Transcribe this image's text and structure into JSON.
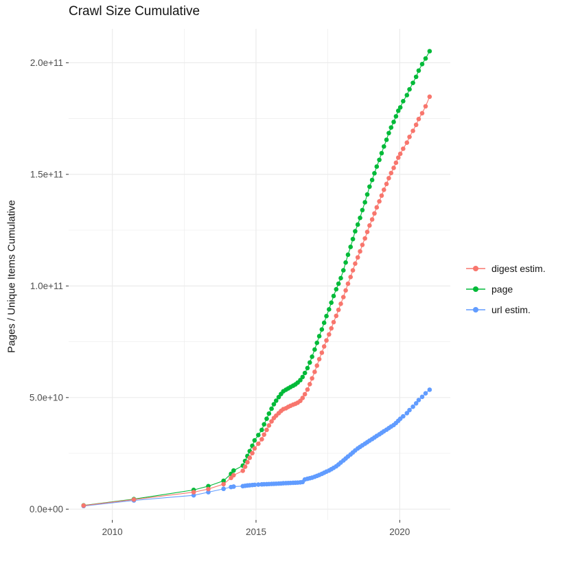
{
  "chart_data": {
    "type": "scatter",
    "title": "Crawl Size Cumulative",
    "xlabel": "",
    "ylabel": "Pages / Unique Items Cumulative",
    "y_unit": "pages (values stored in billions, 1e9)",
    "x_unit": "year (decimal)",
    "grid": true,
    "legend_position": "right",
    "xlim": [
      2008.48,
      2021.76
    ],
    "ylim_billions": [
      -4.83,
      215.2
    ],
    "x_major_ticks": [
      2010,
      2015,
      2020
    ],
    "x_tick_labels": [
      "2010",
      "2015",
      "2020"
    ],
    "x_minor_gridlines": [
      2012.5,
      2017.5
    ],
    "y_major_ticks_billions": [
      0,
      50,
      100,
      150,
      200
    ],
    "y_tick_labels": [
      "0.0e+00",
      "5.0e+10",
      "1.0e+11",
      "1.5e+11",
      "2.0e+11"
    ],
    "y_minor_gridlines_billions": [
      25,
      75,
      125,
      175
    ],
    "series": [
      {
        "name": "digest estim.",
        "color": "#F8766D",
        "points": [
          [
            2009.0,
            1.6
          ],
          [
            2010.75,
            4.3
          ],
          [
            2012.83,
            7.6
          ],
          [
            2013.34,
            9.0
          ],
          [
            2013.87,
            11.2
          ],
          [
            2014.13,
            14.0
          ],
          [
            2014.22,
            15.2
          ],
          [
            2014.54,
            17.2
          ],
          [
            2014.62,
            19.0
          ],
          [
            2014.7,
            21.0
          ],
          [
            2014.78,
            23.0
          ],
          [
            2014.87,
            25.1
          ],
          [
            2014.95,
            27.2
          ],
          [
            2015.08,
            29.3
          ],
          [
            2015.2,
            31.3
          ],
          [
            2015.28,
            33.4
          ],
          [
            2015.37,
            35.5
          ],
          [
            2015.45,
            37.5
          ],
          [
            2015.54,
            39.3
          ],
          [
            2015.62,
            40.8
          ],
          [
            2015.7,
            41.9
          ],
          [
            2015.79,
            43.0
          ],
          [
            2015.87,
            44.0
          ],
          [
            2015.95,
            44.8
          ],
          [
            2016.04,
            45.2
          ],
          [
            2016.12,
            45.8
          ],
          [
            2016.2,
            46.3
          ],
          [
            2016.29,
            46.8
          ],
          [
            2016.37,
            47.2
          ],
          [
            2016.45,
            47.7
          ],
          [
            2016.54,
            48.5
          ],
          [
            2016.62,
            49.8
          ],
          [
            2016.7,
            51.5
          ],
          [
            2016.79,
            53.6
          ],
          [
            2016.87,
            56.0
          ],
          [
            2016.95,
            58.6
          ],
          [
            2017.04,
            61.5
          ],
          [
            2017.12,
            64.3
          ],
          [
            2017.2,
            67.2
          ],
          [
            2017.29,
            70.1
          ],
          [
            2017.37,
            72.9
          ],
          [
            2017.45,
            75.6
          ],
          [
            2017.54,
            78.3
          ],
          [
            2017.62,
            81.0
          ],
          [
            2017.7,
            83.8
          ],
          [
            2017.79,
            86.6
          ],
          [
            2017.87,
            89.3
          ],
          [
            2017.95,
            92.0
          ],
          [
            2018.04,
            95.0
          ],
          [
            2018.12,
            98.0
          ],
          [
            2018.2,
            101.0
          ],
          [
            2018.29,
            104.0
          ],
          [
            2018.37,
            107.0
          ],
          [
            2018.45,
            110.0
          ],
          [
            2018.54,
            112.8
          ],
          [
            2018.62,
            115.5
          ],
          [
            2018.7,
            118.4
          ],
          [
            2018.79,
            121.3
          ],
          [
            2018.87,
            124.2
          ],
          [
            2018.95,
            127.1
          ],
          [
            2019.04,
            129.8
          ],
          [
            2019.12,
            132.5
          ],
          [
            2019.2,
            135.2
          ],
          [
            2019.29,
            137.9
          ],
          [
            2019.37,
            140.5
          ],
          [
            2019.45,
            143.1
          ],
          [
            2019.54,
            145.7
          ],
          [
            2019.62,
            148.3
          ],
          [
            2019.7,
            150.6
          ],
          [
            2019.79,
            152.9
          ],
          [
            2019.87,
            155.2
          ],
          [
            2019.95,
            157.5
          ],
          [
            2020.02,
            159.2
          ],
          [
            2020.12,
            161.5
          ],
          [
            2020.25,
            164.2
          ],
          [
            2020.34,
            166.8
          ],
          [
            2020.46,
            169.5
          ],
          [
            2020.57,
            172.2
          ],
          [
            2020.66,
            174.8
          ],
          [
            2020.78,
            177.4
          ],
          [
            2020.9,
            180.5
          ],
          [
            2021.04,
            184.8
          ]
        ]
      },
      {
        "name": "page",
        "color": "#00BA38",
        "points": [
          [
            2009.0,
            1.7
          ],
          [
            2010.75,
            4.5
          ],
          [
            2012.83,
            8.6
          ],
          [
            2013.34,
            10.3
          ],
          [
            2013.87,
            12.7
          ],
          [
            2014.13,
            15.8
          ],
          [
            2014.22,
            17.3
          ],
          [
            2014.54,
            19.5
          ],
          [
            2014.62,
            21.6
          ],
          [
            2014.7,
            23.8
          ],
          [
            2014.78,
            26.0
          ],
          [
            2014.87,
            28.4
          ],
          [
            2014.95,
            30.8
          ],
          [
            2015.08,
            33.2
          ],
          [
            2015.2,
            35.5
          ],
          [
            2015.28,
            38.0
          ],
          [
            2015.37,
            40.5
          ],
          [
            2015.45,
            42.8
          ],
          [
            2015.54,
            45.0
          ],
          [
            2015.62,
            47.0
          ],
          [
            2015.7,
            48.6
          ],
          [
            2015.79,
            50.2
          ],
          [
            2015.87,
            51.6
          ],
          [
            2015.95,
            52.8
          ],
          [
            2016.04,
            53.5
          ],
          [
            2016.12,
            54.1
          ],
          [
            2016.2,
            54.7
          ],
          [
            2016.29,
            55.3
          ],
          [
            2016.37,
            55.9
          ],
          [
            2016.45,
            56.7
          ],
          [
            2016.54,
            57.8
          ],
          [
            2016.62,
            59.2
          ],
          [
            2016.7,
            61.0
          ],
          [
            2016.79,
            63.2
          ],
          [
            2016.87,
            65.7
          ],
          [
            2016.95,
            68.3
          ],
          [
            2017.04,
            71.5
          ],
          [
            2017.12,
            74.5
          ],
          [
            2017.2,
            77.5
          ],
          [
            2017.29,
            80.5
          ],
          [
            2017.37,
            83.5
          ],
          [
            2017.45,
            86.5
          ],
          [
            2017.54,
            89.5
          ],
          [
            2017.62,
            92.5
          ],
          [
            2017.7,
            95.5
          ],
          [
            2017.79,
            98.5
          ],
          [
            2017.87,
            101.0
          ],
          [
            2017.95,
            103.5
          ],
          [
            2018.04,
            107.0
          ],
          [
            2018.12,
            110.5
          ],
          [
            2018.2,
            114.0
          ],
          [
            2018.29,
            117.5
          ],
          [
            2018.37,
            121.0
          ],
          [
            2018.45,
            124.5
          ],
          [
            2018.54,
            127.5
          ],
          [
            2018.62,
            130.5
          ],
          [
            2018.7,
            134.0
          ],
          [
            2018.79,
            137.5
          ],
          [
            2018.87,
            141.0
          ],
          [
            2018.95,
            144.5
          ],
          [
            2019.04,
            147.5
          ],
          [
            2019.12,
            150.5
          ],
          [
            2019.2,
            153.5
          ],
          [
            2019.29,
            156.5
          ],
          [
            2019.37,
            159.5
          ],
          [
            2019.45,
            162.5
          ],
          [
            2019.54,
            165.5
          ],
          [
            2019.62,
            168.5
          ],
          [
            2019.7,
            171.0
          ],
          [
            2019.79,
            173.5
          ],
          [
            2019.87,
            176.0
          ],
          [
            2019.95,
            178.5
          ],
          [
            2020.02,
            180.0
          ],
          [
            2020.12,
            182.8
          ],
          [
            2020.25,
            185.5
          ],
          [
            2020.34,
            188.1
          ],
          [
            2020.46,
            191.0
          ],
          [
            2020.57,
            193.7
          ],
          [
            2020.66,
            196.5
          ],
          [
            2020.78,
            199.4
          ],
          [
            2020.9,
            201.9
          ],
          [
            2021.04,
            205.2
          ]
        ]
      },
      {
        "name": "url estim.",
        "color": "#619CFF",
        "points": [
          [
            2009.0,
            1.4
          ],
          [
            2010.75,
            3.9
          ],
          [
            2012.83,
            6.2
          ],
          [
            2013.34,
            7.6
          ],
          [
            2013.87,
            9.1
          ],
          [
            2014.13,
            9.9
          ],
          [
            2014.22,
            10.1
          ],
          [
            2014.54,
            10.3
          ],
          [
            2014.62,
            10.45
          ],
          [
            2014.7,
            10.6
          ],
          [
            2014.78,
            10.7
          ],
          [
            2014.87,
            10.8
          ],
          [
            2014.95,
            10.9
          ],
          [
            2015.08,
            11.0
          ],
          [
            2015.2,
            11.1
          ],
          [
            2015.28,
            11.15
          ],
          [
            2015.37,
            11.2
          ],
          [
            2015.45,
            11.25
          ],
          [
            2015.54,
            11.3
          ],
          [
            2015.62,
            11.35
          ],
          [
            2015.7,
            11.4
          ],
          [
            2015.79,
            11.45
          ],
          [
            2015.87,
            11.5
          ],
          [
            2015.95,
            11.6
          ],
          [
            2016.04,
            11.65
          ],
          [
            2016.12,
            11.7
          ],
          [
            2016.2,
            11.75
          ],
          [
            2016.29,
            11.8
          ],
          [
            2016.37,
            11.85
          ],
          [
            2016.45,
            11.9
          ],
          [
            2016.54,
            12.0
          ],
          [
            2016.62,
            12.15
          ],
          [
            2016.7,
            13.3
          ],
          [
            2016.79,
            13.6
          ],
          [
            2016.87,
            13.85
          ],
          [
            2016.95,
            14.1
          ],
          [
            2017.04,
            14.5
          ],
          [
            2017.12,
            14.9
          ],
          [
            2017.2,
            15.3
          ],
          [
            2017.29,
            15.8
          ],
          [
            2017.37,
            16.3
          ],
          [
            2017.45,
            16.8
          ],
          [
            2017.54,
            17.3
          ],
          [
            2017.62,
            17.9
          ],
          [
            2017.7,
            18.5
          ],
          [
            2017.79,
            19.2
          ],
          [
            2017.87,
            20.0
          ],
          [
            2017.95,
            20.9
          ],
          [
            2018.04,
            21.8
          ],
          [
            2018.12,
            22.7
          ],
          [
            2018.2,
            23.6
          ],
          [
            2018.29,
            24.5
          ],
          [
            2018.37,
            25.4
          ],
          [
            2018.45,
            26.3
          ],
          [
            2018.54,
            27.2
          ],
          [
            2018.62,
            27.9
          ],
          [
            2018.7,
            28.6
          ],
          [
            2018.79,
            29.3
          ],
          [
            2018.87,
            30.0
          ],
          [
            2018.95,
            30.7
          ],
          [
            2019.04,
            31.4
          ],
          [
            2019.12,
            32.1
          ],
          [
            2019.2,
            32.8
          ],
          [
            2019.29,
            33.5
          ],
          [
            2019.37,
            34.2
          ],
          [
            2019.45,
            34.9
          ],
          [
            2019.54,
            35.6
          ],
          [
            2019.62,
            36.3
          ],
          [
            2019.7,
            37.0
          ],
          [
            2019.79,
            37.7
          ],
          [
            2019.87,
            38.6
          ],
          [
            2019.95,
            39.6
          ],
          [
            2020.02,
            40.5
          ],
          [
            2020.12,
            41.6
          ],
          [
            2020.25,
            43.0
          ],
          [
            2020.34,
            44.4
          ],
          [
            2020.46,
            45.9
          ],
          [
            2020.57,
            47.4
          ],
          [
            2020.66,
            48.9
          ],
          [
            2020.78,
            50.3
          ],
          [
            2020.9,
            51.9
          ],
          [
            2021.04,
            53.5
          ]
        ]
      }
    ]
  },
  "colors": {
    "background": "#FFFFFF",
    "gridline": "#EBEBEB",
    "tick_mark": "#333333",
    "tick_label": "#4D4D4D",
    "text": "#141414",
    "digest": "#F8766D",
    "page": "#00BA38",
    "url": "#619CFF"
  }
}
